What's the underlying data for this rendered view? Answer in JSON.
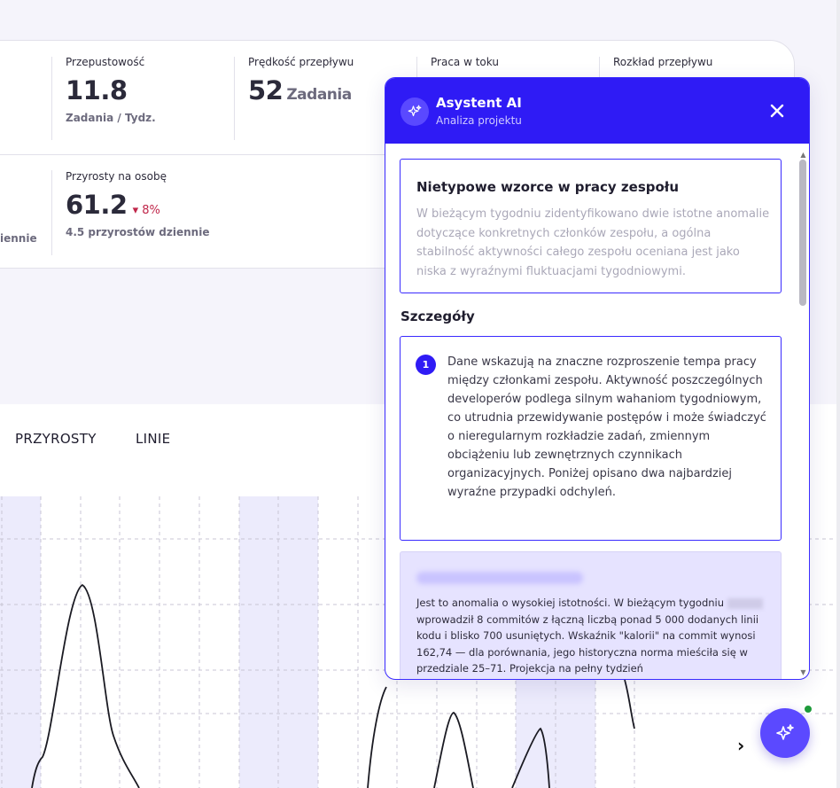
{
  "metrics": {
    "throughput": {
      "label": "Przepustowość",
      "value": "11.8",
      "sub": "Zadania / Tydz."
    },
    "flow_speed": {
      "label": "Prędkość przepływu",
      "value": "52",
      "unit": "Zadania"
    },
    "wip": {
      "label": "Praca w toku"
    },
    "flow_distribution": {
      "label": "Rozkład przepływu"
    },
    "increments_per_person": {
      "label": "Przyrosty na osobę",
      "value": "61.2",
      "delta": "▾ 8%",
      "sub": "4.5 przyrostów dziennie"
    },
    "partial_left_sub": "iennie"
  },
  "chart_tabs": {
    "increments": "PRZYROSTY",
    "lines": "LINIE"
  },
  "chart_nav": {
    "next_icon": "chevron-right-icon"
  },
  "ai_panel": {
    "title": "Asystent AI",
    "subtitle": "Analiza projektu",
    "summary": {
      "title": "Nietypowe wzorce w pracy zespołu",
      "text": "W bieżącym tygodniu zidentyfikowano dwie istotne anomalie dotyczące konkretnych członków zespołu, a ogólna stabilność aktywności całego zespołu oceniana jest jako niska z wyraźnymi fluktuacjami tygodniowymi."
    },
    "details_title": "Szczegóły",
    "detail_items": [
      {
        "number": "1",
        "text": "Dane wskazują na znaczne rozproszenie tempa pracy między członkami zespołu. Aktywność poszczególnych developerów podlega silnym wahaniom tygodniowym, co utrudnia przewidywanie postępów i może świadczyć o nieregularnym rozkładzie zadań, zmiennym obciążeniu lub zewnętrznych czynnikach organizacyjnych. Poniżej opisano dwa najbardziej wyraźne przypadki odchyleń."
      }
    ],
    "anomaly": {
      "text_a": "Jest to anomalia o wysokiej istotności. W bieżącym tygodniu",
      "text_b": "wprowadził 8 commitów z łączną liczbą ponad 5 000 dodanych linii kodu i blisko 700 usuniętych. Wskaźnik \"kalorii\" na commit wynosi 162,74 — dla porównania, jego historyczna norma mieściła się w przedziale 25–71. Projekcja na pełny tydzień"
    }
  },
  "colors": {
    "accent": "#2f1bf5",
    "fab": "#5b49ff",
    "delta_negative": "#c0264a",
    "online": "#1e9a3a",
    "chart_band": "#ecebfc"
  }
}
